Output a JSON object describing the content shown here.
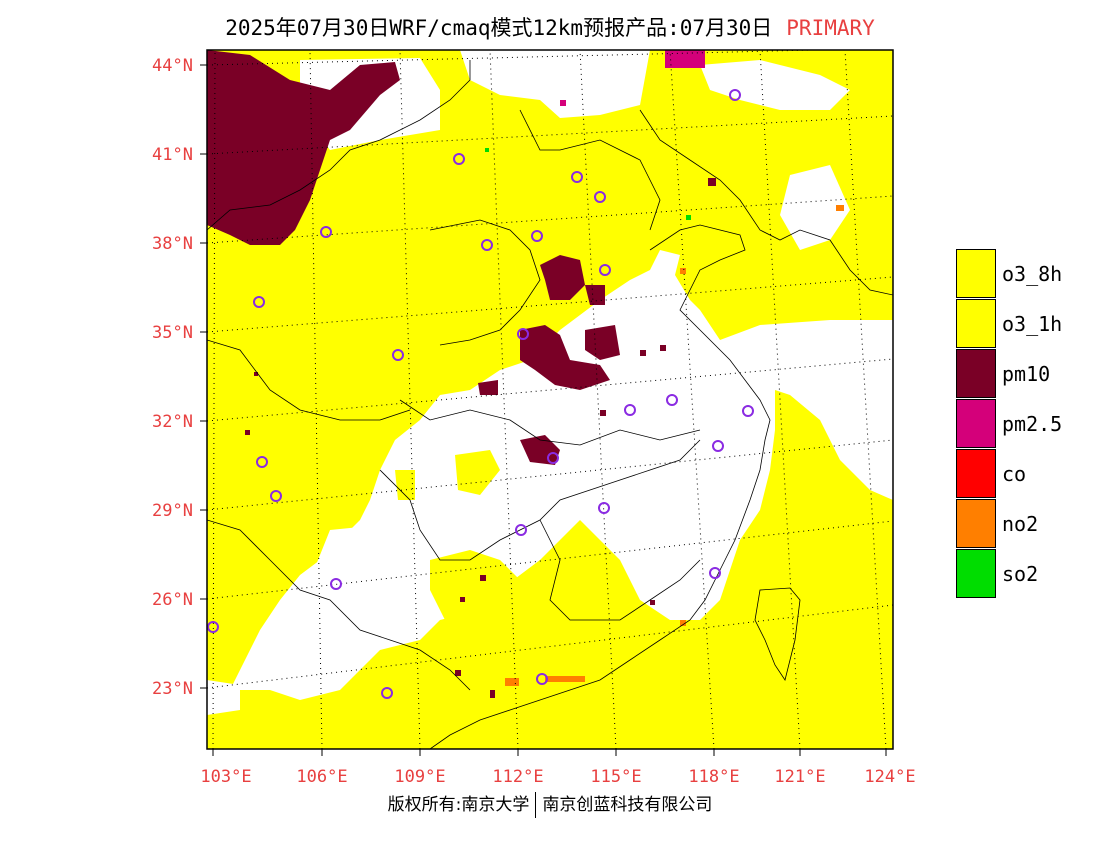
{
  "title": {
    "text": "2025年07月30日WRF/cmaq模式12km预报产品:07月30日",
    "tag": "PRIMARY"
  },
  "colors": {
    "yellow": "#ffff00",
    "pm10": "#7a0026",
    "pm25": "#d4007a",
    "co": "#ff0000",
    "no2": "#ff7f00",
    "so2": "#00dd00",
    "axis_label": "#e84040",
    "station": "#8a2be2"
  },
  "legend": [
    {
      "label": "o3_8h",
      "color": "#ffff00"
    },
    {
      "label": "o3_1h",
      "color": "#ffff00"
    },
    {
      "label": "pm10",
      "color": "#7a0026"
    },
    {
      "label": "pm2.5",
      "color": "#d4007a"
    },
    {
      "label": "co",
      "color": "#ff0000"
    },
    {
      "label": "no2",
      "color": "#ff7f00"
    },
    {
      "label": "so2",
      "color": "#00dd00"
    }
  ],
  "axes": {
    "lat_labels": [
      "44°N",
      "41°N",
      "38°N",
      "35°N",
      "32°N",
      "29°N",
      "26°N",
      "23°N"
    ],
    "lon_labels": [
      "103°E",
      "106°E",
      "109°E",
      "112°E",
      "115°E",
      "118°E",
      "121°E",
      "124°E"
    ]
  },
  "footer": {
    "left": "版权所有:南京大学",
    "right": "南京创蓝科技有限公司"
  }
}
